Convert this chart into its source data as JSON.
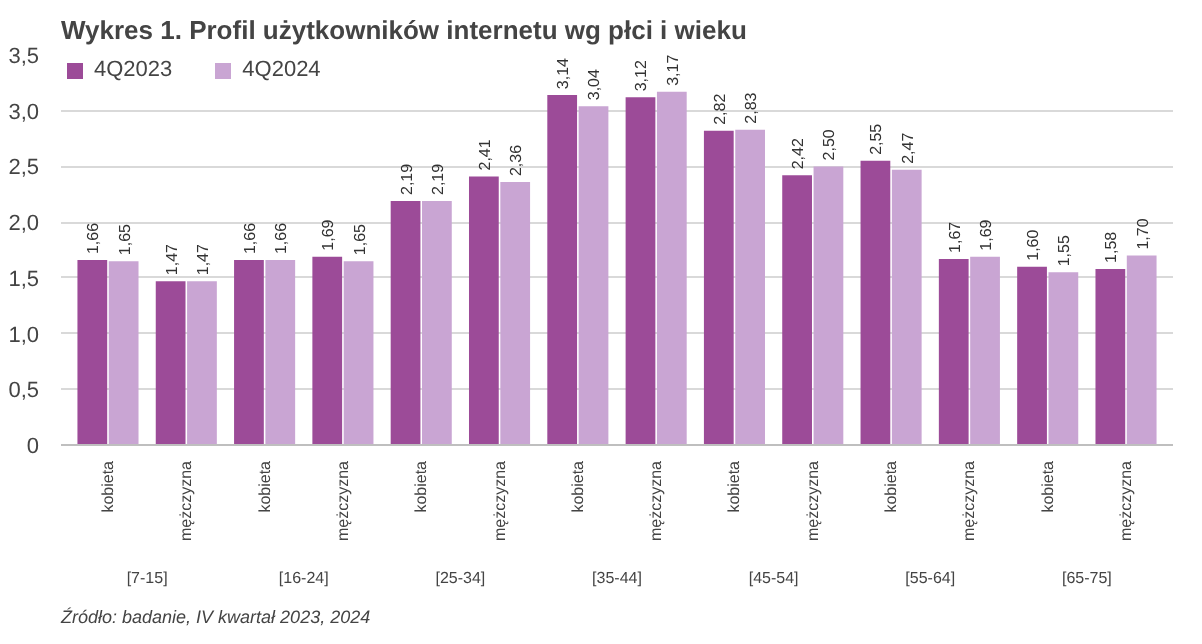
{
  "chart_data": {
    "type": "bar",
    "title": "Wykres 1. Profil użytkowników internetu wg płci i wieku",
    "categories": [
      "kobieta",
      "mężczyzna",
      "kobieta",
      "mężczyzna",
      "kobieta",
      "mężczyzna",
      "kobieta",
      "mężczyzna",
      "kobieta",
      "mężczyzna",
      "kobieta",
      "mężczyzna",
      "kobieta",
      "mężczyzna"
    ],
    "series": [
      {
        "name": "4Q2023",
        "color": "#9c4b98",
        "values": [
          1.66,
          1.47,
          1.66,
          1.69,
          2.19,
          2.41,
          3.14,
          3.12,
          2.82,
          2.42,
          2.55,
          1.67,
          1.6,
          1.58
        ],
        "value_labels": [
          "1,66",
          "1,47",
          "1,66",
          "1,69",
          "2,19",
          "2,41",
          "3,14",
          "3,12",
          "2,82",
          "2,42",
          "2,55",
          "1,67",
          "1,60",
          "1,58"
        ]
      },
      {
        "name": "4Q2024",
        "color": "#c9a5d3",
        "values": [
          1.65,
          1.47,
          1.66,
          1.65,
          2.19,
          2.36,
          3.04,
          3.17,
          2.83,
          2.5,
          2.47,
          1.69,
          1.55,
          1.7
        ],
        "value_labels": [
          "1,65",
          "1,47",
          "1,66",
          "1,65",
          "2,19",
          "2,36",
          "3,04",
          "3,17",
          "2,83",
          "2,50",
          "2,47",
          "1,69",
          "1,55",
          "1,70"
        ]
      }
    ],
    "annotations": [
      "[7-15]",
      "[16-24]",
      "[25-34]",
      "[35-44]",
      "[45-54]",
      "[55-64]",
      "[65-75]",
      "Źródło: badanie, IV kwartał 2023, 2024"
    ],
    "ylim": [
      0,
      3.5
    ],
    "yticks": [
      0,
      {
        "value": 0.5,
        "label": "0,5"
      },
      {
        "value": 1.0,
        "label": "1,0"
      },
      {
        "value": 1.5,
        "label": "1,5"
      },
      {
        "value": 2.0,
        "label": "2,0"
      },
      {
        "value": 2.5,
        "label": "2,5"
      },
      {
        "value": 3.0,
        "label": "3,0"
      },
      {
        "value": 3.5,
        "label": "3,5"
      }
    ],
    "grid": "y",
    "legend": "top left"
  }
}
